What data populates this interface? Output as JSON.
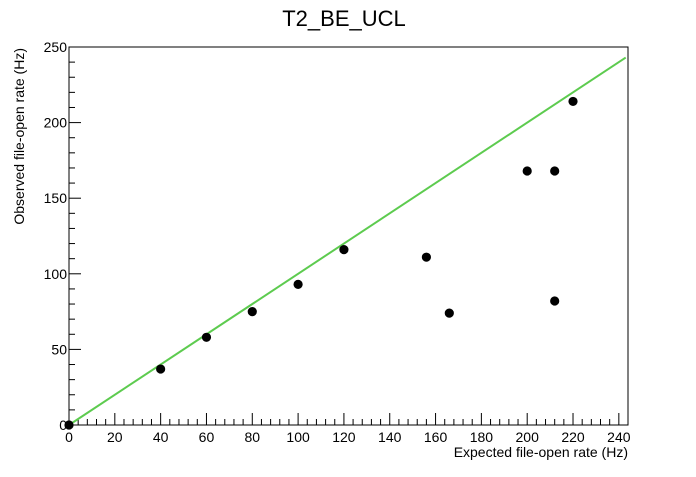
{
  "chart_data": {
    "type": "scatter",
    "title": "T2_BE_UCL",
    "xlabel": "Expected file-open rate (Hz)",
    "ylabel": "Observed file-open rate (Hz)",
    "xlim": [
      0,
      244
    ],
    "ylim": [
      0,
      250
    ],
    "x_major_ticks": [
      0,
      20,
      40,
      60,
      80,
      100,
      120,
      140,
      160,
      180,
      200,
      220,
      240
    ],
    "y_major_ticks": [
      0,
      50,
      100,
      150,
      200,
      250
    ],
    "x_minor_step": 4,
    "y_minor_step": 10,
    "grid": false,
    "series": [
      {
        "type": "scatter",
        "color": "#000000",
        "points": [
          {
            "x": 0,
            "y": 0
          },
          {
            "x": 40,
            "y": 37
          },
          {
            "x": 60,
            "y": 58
          },
          {
            "x": 80,
            "y": 75
          },
          {
            "x": 100,
            "y": 93
          },
          {
            "x": 120,
            "y": 116
          },
          {
            "x": 156,
            "y": 111
          },
          {
            "x": 166,
            "y": 74
          },
          {
            "x": 200,
            "y": 168
          },
          {
            "x": 212,
            "y": 168
          },
          {
            "x": 212,
            "y": 82
          },
          {
            "x": 220,
            "y": 214
          }
        ]
      },
      {
        "type": "line",
        "color": "#5dcb4f",
        "points": [
          {
            "x": 0,
            "y": 0
          },
          {
            "x": 243,
            "y": 243
          }
        ]
      }
    ]
  }
}
